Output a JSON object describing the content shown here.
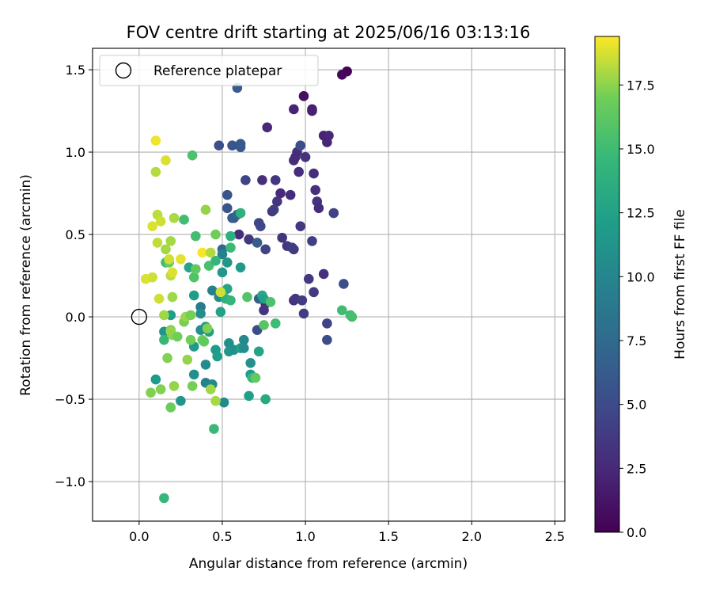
{
  "chart_data": {
    "type": "scatter",
    "title": "FOV centre drift starting at 2025/06/16 03:13:16",
    "xlabel": "Angular distance from reference (arcmin)",
    "ylabel": "Rotation from reference (arcmin)",
    "xlim": [
      -0.28,
      2.56
    ],
    "ylim": [
      -1.24,
      1.63
    ],
    "xticks": [
      0.0,
      0.5,
      1.0,
      1.5,
      2.0,
      2.5
    ],
    "xtick_labels": [
      "0.0",
      "0.5",
      "1.0",
      "1.5",
      "2.0",
      "2.5"
    ],
    "yticks": [
      -1.0,
      -0.5,
      0.0,
      0.5,
      1.0,
      1.5
    ],
    "ytick_labels": [
      "−1.0",
      "−0.5",
      "0.0",
      "0.5",
      "1.0",
      "1.5"
    ],
    "grid": true,
    "legend": {
      "placement": "upper-left",
      "entries": [
        "Reference platepar"
      ]
    },
    "reference_point": {
      "x": 0.0,
      "y": 0.0
    },
    "colorbar": {
      "label": "Hours from first FF file",
      "colormap": "viridis",
      "range": [
        0.0,
        19.4
      ],
      "ticks": [
        0.0,
        2.5,
        5.0,
        7.5,
        10.0,
        12.5,
        15.0,
        17.5
      ],
      "tick_labels": [
        "0.0",
        "2.5",
        "5.0",
        "7.5",
        "10.0",
        "12.5",
        "15.0",
        "17.5"
      ]
    },
    "points": [
      {
        "x": 1.25,
        "y": 1.49,
        "c": 0.1
      },
      {
        "x": 1.22,
        "y": 1.47,
        "c": 0.4
      },
      {
        "x": 0.99,
        "y": 1.34,
        "c": 0.8
      },
      {
        "x": 1.04,
        "y": 1.26,
        "c": 1.6
      },
      {
        "x": 0.93,
        "y": 1.26,
        "c": 2.2
      },
      {
        "x": 1.04,
        "y": 1.25,
        "c": 2.0
      },
      {
        "x": 0.77,
        "y": 1.15,
        "c": 2.4
      },
      {
        "x": 1.11,
        "y": 1.1,
        "c": 2.1
      },
      {
        "x": 1.14,
        "y": 1.1,
        "c": 2.5
      },
      {
        "x": 1.13,
        "y": 1.06,
        "c": 2.3
      },
      {
        "x": 0.95,
        "y": 1.0,
        "c": 2.9
      },
      {
        "x": 0.94,
        "y": 0.97,
        "c": 2.6
      },
      {
        "x": 0.93,
        "y": 0.95,
        "c": 2.7
      },
      {
        "x": 1.0,
        "y": 0.97,
        "c": 3.3
      },
      {
        "x": 0.97,
        "y": 1.04,
        "c": 5.1
      },
      {
        "x": 0.96,
        "y": 0.88,
        "c": 2.8
      },
      {
        "x": 1.05,
        "y": 0.87,
        "c": 2.9
      },
      {
        "x": 0.74,
        "y": 0.83,
        "c": 3.0
      },
      {
        "x": 0.82,
        "y": 0.83,
        "c": 3.5
      },
      {
        "x": 0.64,
        "y": 0.83,
        "c": 4.5
      },
      {
        "x": 1.06,
        "y": 0.77,
        "c": 3.0
      },
      {
        "x": 0.85,
        "y": 0.75,
        "c": 2.6
      },
      {
        "x": 0.91,
        "y": 0.74,
        "c": 2.8
      },
      {
        "x": 1.07,
        "y": 0.7,
        "c": 3.2
      },
      {
        "x": 0.83,
        "y": 0.7,
        "c": 3.4
      },
      {
        "x": 1.08,
        "y": 0.66,
        "c": 2.8
      },
      {
        "x": 0.8,
        "y": 0.64,
        "c": 3.6
      },
      {
        "x": 0.81,
        "y": 0.65,
        "c": 4.0
      },
      {
        "x": 1.17,
        "y": 0.63,
        "c": 4.4
      },
      {
        "x": 0.57,
        "y": 0.6,
        "c": 5.2
      },
      {
        "x": 0.72,
        "y": 0.57,
        "c": 4.6
      },
      {
        "x": 0.73,
        "y": 0.55,
        "c": 4.8
      },
      {
        "x": 0.97,
        "y": 0.55,
        "c": 3.5
      },
      {
        "x": 0.6,
        "y": 0.5,
        "c": 2.7
      },
      {
        "x": 0.86,
        "y": 0.48,
        "c": 3.3
      },
      {
        "x": 0.66,
        "y": 0.47,
        "c": 3.6
      },
      {
        "x": 1.04,
        "y": 0.46,
        "c": 4.1
      },
      {
        "x": 0.71,
        "y": 0.45,
        "c": 6.4
      },
      {
        "x": 0.89,
        "y": 0.43,
        "c": 3.4
      },
      {
        "x": 0.93,
        "y": 0.41,
        "c": 3.6
      },
      {
        "x": 0.92,
        "y": 0.42,
        "c": 3.9
      },
      {
        "x": 0.76,
        "y": 0.41,
        "c": 4.4
      },
      {
        "x": 1.11,
        "y": 0.26,
        "c": 3.1
      },
      {
        "x": 1.02,
        "y": 0.23,
        "c": 3.7
      },
      {
        "x": 1.23,
        "y": 0.2,
        "c": 5.3
      },
      {
        "x": 1.05,
        "y": 0.15,
        "c": 3.8
      },
      {
        "x": 0.93,
        "y": 0.1,
        "c": 3.1
      },
      {
        "x": 0.94,
        "y": 0.11,
        "c": 3.5
      },
      {
        "x": 0.98,
        "y": 0.1,
        "c": 3.8
      },
      {
        "x": 0.99,
        "y": 0.02,
        "c": 4.0
      },
      {
        "x": 0.76,
        "y": 0.08,
        "c": 2.7
      },
      {
        "x": 0.75,
        "y": 0.04,
        "c": 3.4
      },
      {
        "x": 0.71,
        "y": -0.08,
        "c": 5.2
      },
      {
        "x": 1.13,
        "y": -0.04,
        "c": 4.4
      },
      {
        "x": 1.13,
        "y": -0.14,
        "c": 5.2
      },
      {
        "x": 0.72,
        "y": 0.11,
        "c": 6.5
      },
      {
        "x": 0.59,
        "y": 1.39,
        "c": 6.4
      },
      {
        "x": 0.48,
        "y": 1.04,
        "c": 5.4
      },
      {
        "x": 0.56,
        "y": 1.04,
        "c": 5.8
      },
      {
        "x": 0.61,
        "y": 1.05,
        "c": 6.0
      },
      {
        "x": 0.61,
        "y": 1.03,
        "c": 6.2
      },
      {
        "x": 0.53,
        "y": 0.74,
        "c": 5.6
      },
      {
        "x": 0.53,
        "y": 0.66,
        "c": 5.8
      },
      {
        "x": 0.56,
        "y": 0.6,
        "c": 6.6
      },
      {
        "x": 0.59,
        "y": 0.62,
        "c": 7.0
      },
      {
        "x": 0.61,
        "y": 0.63,
        "c": 13.9
      },
      {
        "x": 0.5,
        "y": 0.41,
        "c": 7.3
      },
      {
        "x": 0.5,
        "y": 0.38,
        "c": 9.6
      },
      {
        "x": 0.55,
        "y": 0.49,
        "c": 13.8
      },
      {
        "x": 0.55,
        "y": 0.42,
        "c": 14.8
      },
      {
        "x": 0.53,
        "y": 0.33,
        "c": 11.4
      },
      {
        "x": 0.61,
        "y": 0.3,
        "c": 11.9
      },
      {
        "x": 0.5,
        "y": 0.27,
        "c": 11.5
      },
      {
        "x": 0.44,
        "y": 0.16,
        "c": 9.5
      },
      {
        "x": 0.48,
        "y": 0.12,
        "c": 10.5
      },
      {
        "x": 0.53,
        "y": 0.17,
        "c": 12.8
      },
      {
        "x": 0.52,
        "y": 0.11,
        "c": 13.8
      },
      {
        "x": 0.55,
        "y": 0.1,
        "c": 14.4
      },
      {
        "x": 0.65,
        "y": 0.12,
        "c": 15.8
      },
      {
        "x": 0.74,
        "y": 0.13,
        "c": 13.0
      },
      {
        "x": 0.75,
        "y": 0.11,
        "c": 12.4
      },
      {
        "x": 0.37,
        "y": 0.06,
        "c": 9.0
      },
      {
        "x": 0.37,
        "y": 0.02,
        "c": 10.8
      },
      {
        "x": 0.33,
        "y": 0.13,
        "c": 12.0
      },
      {
        "x": 0.49,
        "y": 0.03,
        "c": 12.5
      },
      {
        "x": 0.4,
        "y": -0.06,
        "c": 11.6
      },
      {
        "x": 0.37,
        "y": -0.08,
        "c": 10.9
      },
      {
        "x": 0.42,
        "y": -0.09,
        "c": 11.9
      },
      {
        "x": 0.46,
        "y": -0.2,
        "c": 11.8
      },
      {
        "x": 0.47,
        "y": -0.24,
        "c": 12.1
      },
      {
        "x": 0.54,
        "y": -0.16,
        "c": 10.8
      },
      {
        "x": 0.54,
        "y": -0.21,
        "c": 11.4
      },
      {
        "x": 0.57,
        "y": -0.2,
        "c": 10.9
      },
      {
        "x": 0.61,
        "y": -0.19,
        "c": 12.3
      },
      {
        "x": 0.63,
        "y": -0.14,
        "c": 10.2
      },
      {
        "x": 0.63,
        "y": -0.19,
        "c": 10.7
      },
      {
        "x": 0.67,
        "y": -0.28,
        "c": 10.9
      },
      {
        "x": 0.67,
        "y": -0.35,
        "c": 11.8
      },
      {
        "x": 0.68,
        "y": -0.37,
        "c": 14.6
      },
      {
        "x": 0.33,
        "y": -0.18,
        "c": 11.9
      },
      {
        "x": 0.4,
        "y": -0.29,
        "c": 10.5
      },
      {
        "x": 0.33,
        "y": -0.35,
        "c": 10.9
      },
      {
        "x": 0.4,
        "y": -0.4,
        "c": 9.6
      },
      {
        "x": 0.44,
        "y": -0.41,
        "c": 10.2
      },
      {
        "x": 0.51,
        "y": -0.52,
        "c": 10.3
      },
      {
        "x": 0.66,
        "y": -0.48,
        "c": 12.2
      },
      {
        "x": 0.76,
        "y": -0.5,
        "c": 13.2
      },
      {
        "x": 0.72,
        "y": -0.21,
        "c": 12.7
      },
      {
        "x": 0.15,
        "y": -0.09,
        "c": 11.3
      },
      {
        "x": 0.15,
        "y": -0.14,
        "c": 14.6
      },
      {
        "x": 0.19,
        "y": 0.01,
        "c": 12.1
      },
      {
        "x": 0.25,
        "y": -0.51,
        "c": 11.3
      },
      {
        "x": 0.1,
        "y": -0.38,
        "c": 11.8
      },
      {
        "x": 0.45,
        "y": -0.68,
        "c": 14.7
      },
      {
        "x": 0.15,
        "y": -1.1,
        "c": 14.6
      },
      {
        "x": 0.32,
        "y": 0.98,
        "c": 15.6
      },
      {
        "x": 0.27,
        "y": 0.59,
        "c": 15.1
      },
      {
        "x": 0.34,
        "y": 0.49,
        "c": 15.2
      },
      {
        "x": 0.3,
        "y": 0.3,
        "c": 12.9
      },
      {
        "x": 0.33,
        "y": 0.24,
        "c": 15.7
      },
      {
        "x": 0.34,
        "y": 0.29,
        "c": 16.3
      },
      {
        "x": 0.42,
        "y": 0.31,
        "c": 15.5
      },
      {
        "x": 0.46,
        "y": 0.34,
        "c": 14.5
      },
      {
        "x": 0.16,
        "y": 0.33,
        "c": 15.0
      },
      {
        "x": 0.18,
        "y": 0.33,
        "c": 16.7
      },
      {
        "x": 0.79,
        "y": 0.09,
        "c": 15.6
      },
      {
        "x": 0.82,
        "y": -0.04,
        "c": 15.0
      },
      {
        "x": 1.22,
        "y": 0.04,
        "c": 15.0
      },
      {
        "x": 1.27,
        "y": 0.01,
        "c": 15.0
      },
      {
        "x": 1.28,
        "y": 0.0,
        "c": 15.3
      },
      {
        "x": 0.75,
        "y": -0.05,
        "c": 16.0
      },
      {
        "x": 0.7,
        "y": -0.37,
        "c": 16.4
      },
      {
        "x": 0.46,
        "y": 0.5,
        "c": 17.0
      },
      {
        "x": 0.4,
        "y": 0.65,
        "c": 17.6
      },
      {
        "x": 0.1,
        "y": 1.07,
        "c": 19.2
      },
      {
        "x": 0.1,
        "y": 0.88,
        "c": 18.2
      },
      {
        "x": 0.16,
        "y": 0.95,
        "c": 18.8
      },
      {
        "x": 0.11,
        "y": 0.62,
        "c": 18.3
      },
      {
        "x": 0.13,
        "y": 0.58,
        "c": 18.6
      },
      {
        "x": 0.21,
        "y": 0.6,
        "c": 18.0
      },
      {
        "x": 0.08,
        "y": 0.55,
        "c": 18.8
      },
      {
        "x": 0.11,
        "y": 0.45,
        "c": 18.4
      },
      {
        "x": 0.19,
        "y": 0.46,
        "c": 17.9
      },
      {
        "x": 0.16,
        "y": 0.41,
        "c": 17.9
      },
      {
        "x": 0.18,
        "y": 0.35,
        "c": 18.6
      },
      {
        "x": 0.25,
        "y": 0.35,
        "c": 19.0
      },
      {
        "x": 0.19,
        "y": 0.25,
        "c": 18.3
      },
      {
        "x": 0.2,
        "y": 0.27,
        "c": 18.8
      },
      {
        "x": 0.04,
        "y": 0.23,
        "c": 18.8
      },
      {
        "x": 0.08,
        "y": 0.24,
        "c": 18.6
      },
      {
        "x": 0.38,
        "y": 0.39,
        "c": 19.3
      },
      {
        "x": 0.43,
        "y": 0.39,
        "c": 18.1
      },
      {
        "x": 0.49,
        "y": 0.15,
        "c": 18.6
      },
      {
        "x": 0.2,
        "y": 0.12,
        "c": 17.8
      },
      {
        "x": 0.12,
        "y": 0.11,
        "c": 18.6
      },
      {
        "x": 0.15,
        "y": 0.01,
        "c": 17.8
      },
      {
        "x": 0.19,
        "y": -0.08,
        "c": 17.2
      },
      {
        "x": 0.19,
        "y": -0.09,
        "c": 17.7
      },
      {
        "x": 0.2,
        "y": -0.11,
        "c": 17.5
      },
      {
        "x": 0.23,
        "y": -0.12,
        "c": 17.0
      },
      {
        "x": 0.27,
        "y": -0.03,
        "c": 17.1
      },
      {
        "x": 0.28,
        "y": 0.0,
        "c": 17.7
      },
      {
        "x": 0.31,
        "y": 0.01,
        "c": 17.1
      },
      {
        "x": 0.31,
        "y": -0.14,
        "c": 17.0
      },
      {
        "x": 0.38,
        "y": -0.14,
        "c": 16.9
      },
      {
        "x": 0.41,
        "y": -0.07,
        "c": 17.3
      },
      {
        "x": 0.39,
        "y": -0.15,
        "c": 16.4
      },
      {
        "x": 0.17,
        "y": -0.25,
        "c": 17.3
      },
      {
        "x": 0.29,
        "y": -0.26,
        "c": 17.6
      },
      {
        "x": 0.21,
        "y": -0.42,
        "c": 17.6
      },
      {
        "x": 0.13,
        "y": -0.44,
        "c": 17.3
      },
      {
        "x": 0.07,
        "y": -0.46,
        "c": 17.3
      },
      {
        "x": 0.32,
        "y": -0.42,
        "c": 17.1
      },
      {
        "x": 0.43,
        "y": -0.44,
        "c": 17.8
      },
      {
        "x": 0.46,
        "y": -0.51,
        "c": 17.9
      },
      {
        "x": 0.19,
        "y": -0.55,
        "c": 16.8
      }
    ]
  }
}
